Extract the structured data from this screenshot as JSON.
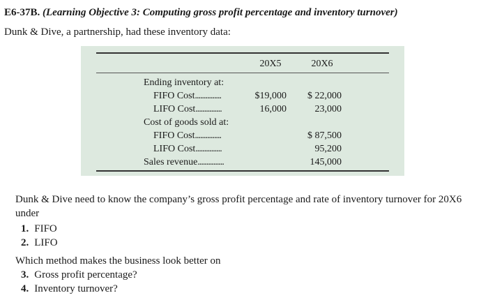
{
  "heading": {
    "number": "E6-37B.",
    "objective": "(Learning Objective 3: Computing gross profit percentage and inventory turnover)"
  },
  "intro": "Dunk & Dive, a partnership, had these inventory data:",
  "table": {
    "columns": [
      "20X5",
      "20X6"
    ],
    "rows": [
      {
        "label": "Ending inventory at:",
        "dots": "",
        "v1": "",
        "v2": ""
      },
      {
        "label": "FIFO Cost",
        "dots": "...............",
        "v1": "$19,000",
        "v2": "$ 22,000"
      },
      {
        "label": "LIFO Cost",
        "dots": "...............",
        "v1": "16,000",
        "v2": "23,000"
      },
      {
        "label": "Cost of goods sold at:",
        "dots": "",
        "v1": "",
        "v2": ""
      },
      {
        "label": "FIFO Cost",
        "dots": "...............",
        "v1": "",
        "v2": "$ 87,500"
      },
      {
        "label": "LIFO Cost",
        "dots": "...............",
        "v1": "",
        "v2": "95,200"
      },
      {
        "label": "Sales revenue",
        "dots": "...............",
        "v1": "",
        "v2": "145,000"
      }
    ]
  },
  "question": {
    "intro": "Dunk & Dive need to know the company’s gross profit percentage and rate of inventory turnover for 20X6 under",
    "items": [
      {
        "n": "1.",
        "text": "FIFO"
      },
      {
        "n": "2.",
        "text": "LIFO"
      }
    ],
    "which": "Which method makes the business look better on",
    "items2": [
      {
        "n": "3.",
        "text": "Gross profit percentage?"
      },
      {
        "n": "4.",
        "text": "Inventory turnover?"
      }
    ]
  }
}
